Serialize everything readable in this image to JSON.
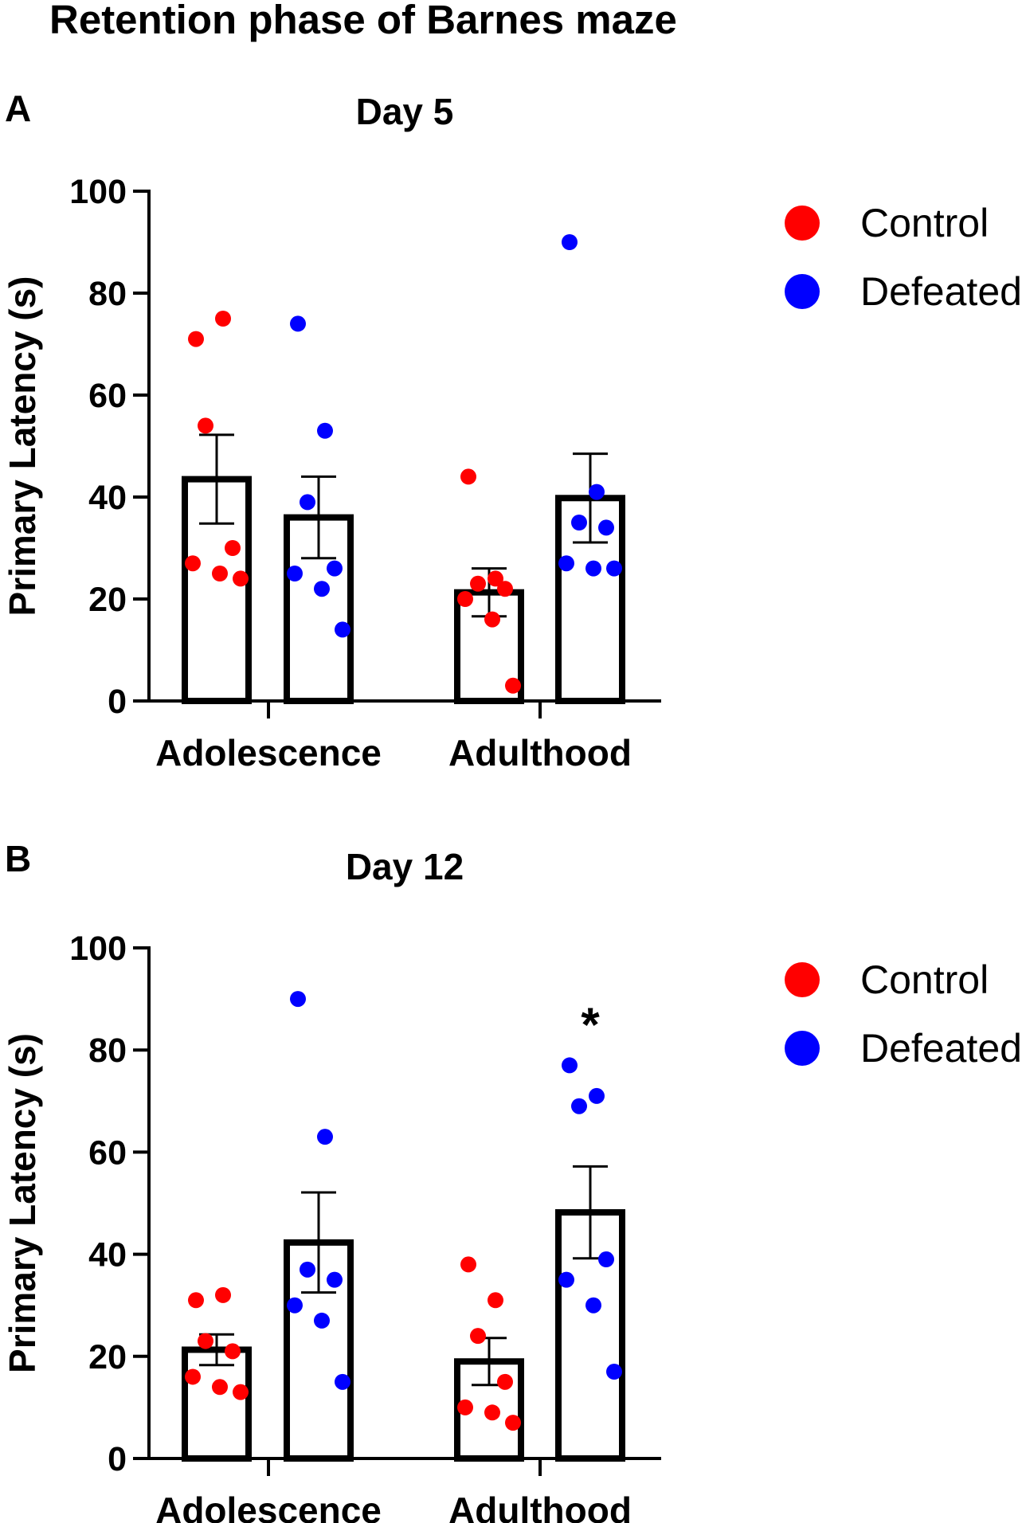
{
  "title": "Retention phase of Barnes maze",
  "legend": {
    "items": [
      {
        "label": "Control",
        "color": "#ff0000"
      },
      {
        "label": "Defeated",
        "color": "#0000ff"
      }
    ],
    "position": "top-right"
  },
  "chart_data": [
    {
      "type": "bar",
      "panel_label": "A",
      "title": "Day 5",
      "xlabel": "",
      "ylabel": "Primary Latency (s)",
      "ylim": [
        0,
        100
      ],
      "yticks": [
        0,
        20,
        40,
        60,
        80,
        100
      ],
      "categories": [
        "Adolescence",
        "Adulthood"
      ],
      "error_bars": "SEM",
      "series": [
        {
          "name": "Control",
          "color": "#ff0000",
          "values": [
            43.5,
            21.3
          ],
          "sem": [
            8.7,
            4.7
          ],
          "points": [
            [
              71,
              75,
              54,
              30,
              27,
              25,
              24
            ],
            [
              44,
              24,
              23,
              22,
              20,
              16,
              3
            ]
          ]
        },
        {
          "name": "Defeated",
          "color": "#0000ff",
          "values": [
            36,
            39.8
          ],
          "sem": [
            8,
            8.7
          ],
          "points": [
            [
              74,
              53,
              39,
              26,
              25,
              22,
              14
            ],
            [
              90,
              41,
              35,
              34,
              27,
              26,
              26
            ]
          ]
        }
      ],
      "annotations": []
    },
    {
      "type": "bar",
      "panel_label": "B",
      "title": "Day 12",
      "xlabel": "",
      "ylabel": "Primary Latency (s)",
      "ylim": [
        0,
        100
      ],
      "yticks": [
        0,
        20,
        40,
        60,
        80,
        100
      ],
      "categories": [
        "Adolescence",
        "Adulthood"
      ],
      "error_bars": "SEM",
      "series": [
        {
          "name": "Control",
          "color": "#ff0000",
          "values": [
            21.3,
            19
          ],
          "sem": [
            3,
            4.6
          ],
          "points": [
            [
              31,
              32,
              23,
              21,
              16,
              14,
              13
            ],
            [
              38,
              31,
              24,
              15,
              10,
              9,
              7
            ]
          ]
        },
        {
          "name": "Defeated",
          "color": "#0000ff",
          "values": [
            42.3,
            48.2
          ],
          "sem": [
            9.8,
            9
          ],
          "points": [
            [
              90,
              63,
              37,
              35,
              30,
              27,
              15
            ],
            [
              77,
              71,
              69,
              39,
              35,
              30,
              17
            ]
          ]
        }
      ],
      "annotations": [
        {
          "text": "*",
          "category": "Adulthood",
          "series": "Defeated"
        }
      ]
    }
  ]
}
